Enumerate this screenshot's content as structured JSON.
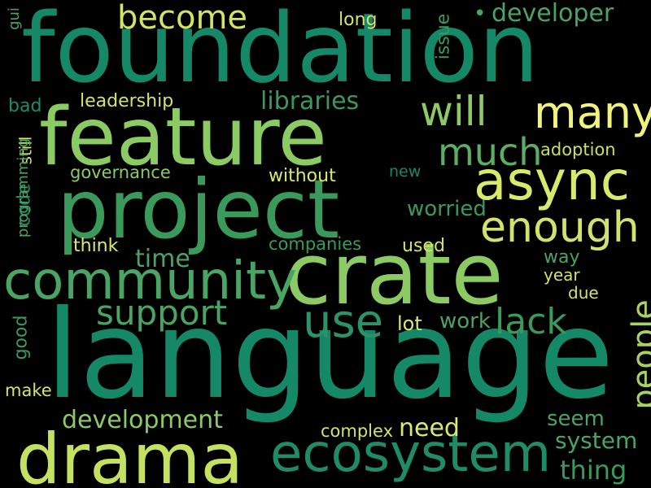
{
  "background_color": "#000000",
  "words": [
    {
      "text": "foundation",
      "color": "#158868"
    },
    {
      "text": "language",
      "color": "#158868"
    },
    {
      "text": "feature",
      "color": "#8ccb63"
    },
    {
      "text": "crate",
      "color": "#8ccb63"
    },
    {
      "text": "project",
      "color": "#3a9a5c"
    },
    {
      "text": "drama",
      "color": "#c4e15f"
    },
    {
      "text": "community",
      "color": "#4aa463"
    },
    {
      "text": "async",
      "color": "#d8ea6b"
    },
    {
      "text": "ecosystem",
      "color": "#1e8c68"
    },
    {
      "text": "many",
      "color": "#f1f47b"
    },
    {
      "text": "enough",
      "color": "#d2e26a"
    },
    {
      "text": "much",
      "color": "#5ead65"
    },
    {
      "text": "will",
      "color": "#8ccb63"
    },
    {
      "text": "use",
      "color": "#2a9468"
    },
    {
      "text": "become",
      "color": "#d2e26a"
    },
    {
      "text": "support",
      "color": "#4aa463"
    },
    {
      "text": "people",
      "color": "#a9d35f"
    },
    {
      "text": "lack",
      "color": "#3a9a5c"
    },
    {
      "text": "libraries",
      "color": "#3a9a5c"
    },
    {
      "text": "development",
      "color": "#8ccb63"
    },
    {
      "text": "developer",
      "color": "#4aa463"
    },
    {
      "text": "time",
      "color": "#4aa463"
    },
    {
      "text": "system",
      "color": "#4aa463"
    },
    {
      "text": "thing",
      "color": "#3a9a5c"
    },
    {
      "text": "seem",
      "color": "#4aa463"
    },
    {
      "text": "need",
      "color": "#d8ea6b"
    },
    {
      "text": "work",
      "color": "#4aa463"
    },
    {
      "text": "issue",
      "color": "#3a9a5c"
    },
    {
      "text": "worried",
      "color": "#3a9a5c"
    },
    {
      "text": "leadership",
      "color": "#d2e26a"
    },
    {
      "text": "governance",
      "color": "#8ccb63"
    },
    {
      "text": "adoption",
      "color": "#c4e15f"
    },
    {
      "text": "companies",
      "color": "#3a9a5c"
    },
    {
      "text": "long",
      "color": "#d2e26a"
    },
    {
      "text": "without",
      "color": "#d8ea6b"
    },
    {
      "text": "new",
      "color": "#158868"
    },
    {
      "text": "used",
      "color": "#d2e26a"
    },
    {
      "text": "way",
      "color": "#4aa463"
    },
    {
      "text": "year",
      "color": "#d2e26a"
    },
    {
      "text": "due",
      "color": "#d2e26a"
    },
    {
      "text": "lot",
      "color": "#d8ea6b"
    },
    {
      "text": "think",
      "color": "#d8ea6b"
    },
    {
      "text": "complex",
      "color": "#d2e26a"
    },
    {
      "text": "bad",
      "color": "#1e8c68"
    },
    {
      "text": "code",
      "color": "#1e8c68"
    },
    {
      "text": "still",
      "color": "#d2e26a"
    },
    {
      "text": "programming",
      "color": "#4aa463"
    },
    {
      "text": "good",
      "color": "#3a9a5c"
    },
    {
      "text": "make",
      "color": "#d2e26a"
    },
    {
      "text": "gui",
      "color": "#4aa463"
    },
    {
      "text": "•",
      "color": "#4aa463"
    }
  ]
}
